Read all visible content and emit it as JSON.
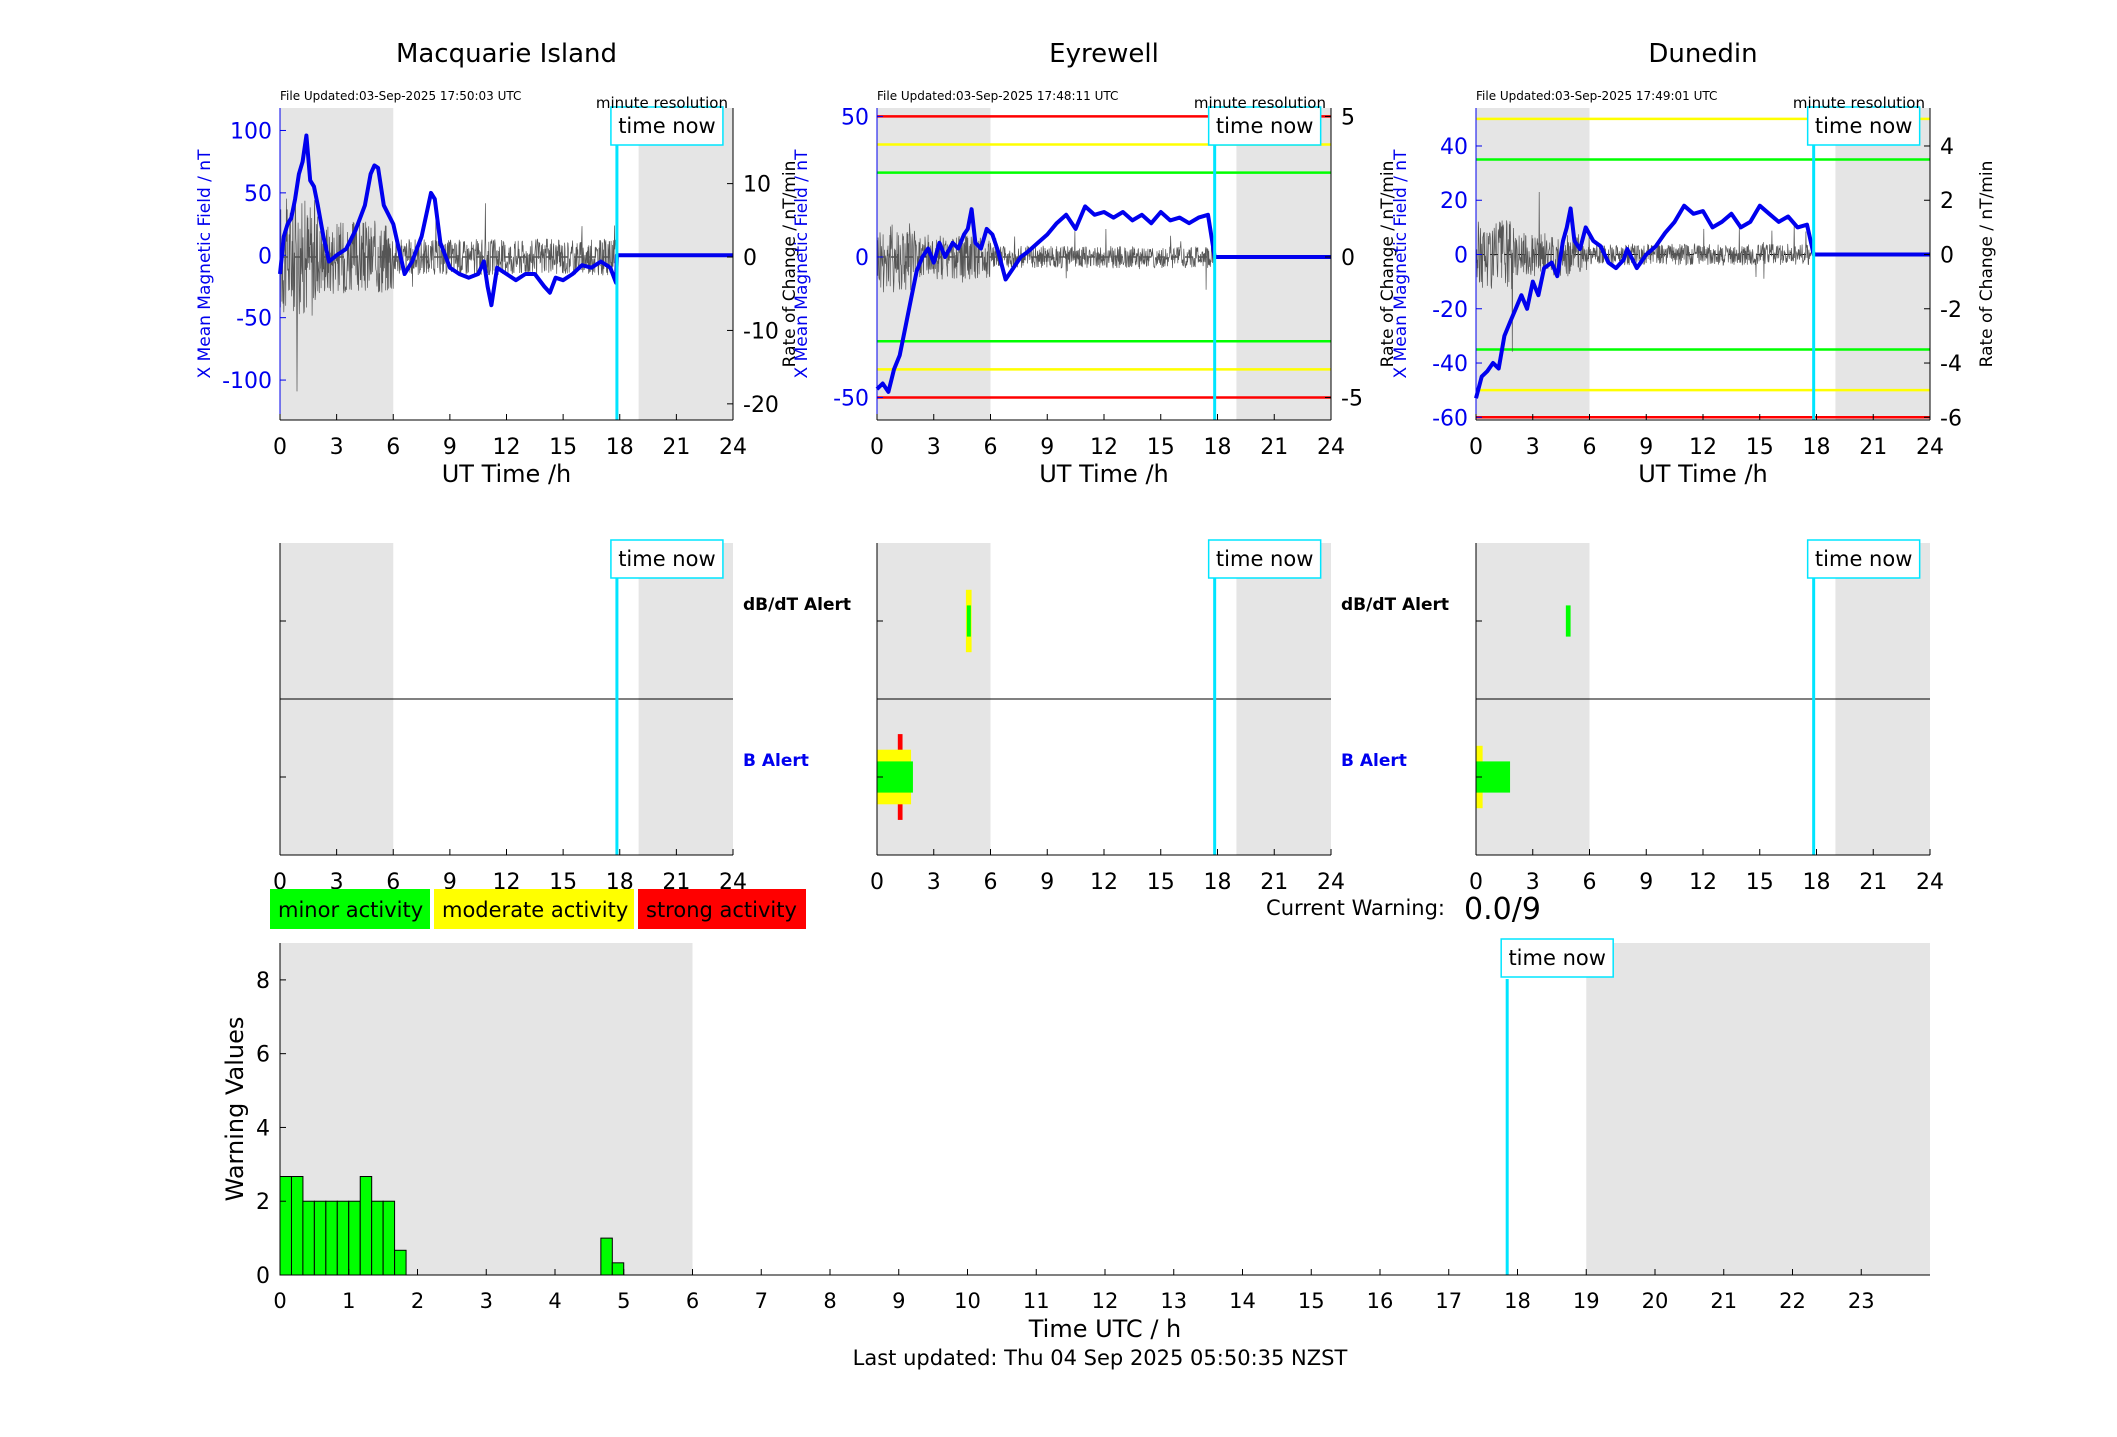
{
  "panels": [
    {
      "id": "macquarie",
      "title": "Macquarie Island",
      "file_updated": "File Updated:03-Sep-2025 17:50:03 UTC",
      "resolution": "minute resolution",
      "ylabel_left": "X Mean Magnetic Field / nT",
      "ylabel_right": "Rate of Change / nT/min",
      "xlabel": "UT Time /h",
      "yticks_left": [
        -100,
        -50,
        0,
        50,
        100
      ],
      "ylim_left": [
        -132,
        118
      ],
      "yticks_right": [
        -20,
        -10,
        0,
        10
      ],
      "ylim_right": [
        -22.2,
        20.3
      ],
      "thresholds": [],
      "field_trace": [
        [
          0,
          -15
        ],
        [
          0.2,
          15
        ],
        [
          0.4,
          25
        ],
        [
          0.6,
          30
        ],
        [
          0.8,
          45
        ],
        [
          1,
          65
        ],
        [
          1.2,
          75
        ],
        [
          1.4,
          96
        ],
        [
          1.6,
          60
        ],
        [
          1.8,
          55
        ],
        [
          2,
          40
        ],
        [
          2.3,
          15
        ],
        [
          2.6,
          -5
        ],
        [
          3,
          0
        ],
        [
          3.5,
          5
        ],
        [
          4,
          20
        ],
        [
          4.5,
          40
        ],
        [
          4.8,
          65
        ],
        [
          5,
          72
        ],
        [
          5.2,
          70
        ],
        [
          5.5,
          40
        ],
        [
          6,
          25
        ],
        [
          6.3,
          5
        ],
        [
          6.6,
          -15
        ],
        [
          7,
          -5
        ],
        [
          7.5,
          15
        ],
        [
          8,
          50
        ],
        [
          8.2,
          45
        ],
        [
          8.5,
          10
        ],
        [
          9,
          -10
        ],
        [
          9.5,
          -15
        ],
        [
          10,
          -18
        ],
        [
          10.5,
          -15
        ],
        [
          10.8,
          -5
        ],
        [
          11,
          -25
        ],
        [
          11.2,
          -40
        ],
        [
          11.5,
          -10
        ],
        [
          12,
          -15
        ],
        [
          12.5,
          -20
        ],
        [
          13,
          -15
        ],
        [
          13.5,
          -15
        ],
        [
          14,
          -25
        ],
        [
          14.3,
          -30
        ],
        [
          14.6,
          -18
        ],
        [
          15,
          -20
        ],
        [
          15.5,
          -15
        ],
        [
          16,
          -8
        ],
        [
          16.5,
          -10
        ],
        [
          17,
          -5
        ],
        [
          17.5,
          -10
        ],
        [
          17.8,
          -22
        ],
        [
          17.85,
          0
        ],
        [
          24,
          0
        ]
      ],
      "rate_trace_amplitude": 5,
      "now_hour": 17.85,
      "shade": [
        [
          0,
          6
        ],
        [
          19,
          24
        ]
      ]
    },
    {
      "id": "eyrewell",
      "title": "Eyrewell",
      "file_updated": "File Updated:03-Sep-2025 17:48:11 UTC",
      "resolution": "minute resolution",
      "ylabel_left": "X Mean Magnetic Field / nT",
      "ylabel_right": "Rate of Change / nT/min",
      "xlabel": "UT Time /h",
      "yticks_left": [
        -50,
        0,
        50
      ],
      "ylim_left": [
        -58,
        53
      ],
      "yticks_right": [
        -5,
        0,
        5
      ],
      "ylim_right": [
        -5.8,
        5.3
      ],
      "thresholds": [
        {
          "value": 50,
          "color": "#ff0000"
        },
        {
          "value": 40,
          "color": "#ffff00"
        },
        {
          "value": 30,
          "color": "#00ff00"
        },
        {
          "value": -30,
          "color": "#00ff00"
        },
        {
          "value": -40,
          "color": "#ffff00"
        },
        {
          "value": -50,
          "color": "#ff0000"
        }
      ],
      "field_trace": [
        [
          0,
          -47
        ],
        [
          0.3,
          -45
        ],
        [
          0.6,
          -48
        ],
        [
          0.9,
          -40
        ],
        [
          1.2,
          -35
        ],
        [
          1.5,
          -25
        ],
        [
          1.8,
          -15
        ],
        [
          2.1,
          -5
        ],
        [
          2.4,
          0
        ],
        [
          2.7,
          3
        ],
        [
          3,
          -2
        ],
        [
          3.3,
          5
        ],
        [
          3.6,
          0
        ],
        [
          4,
          5
        ],
        [
          4.3,
          3
        ],
        [
          4.6,
          8
        ],
        [
          4.8,
          10
        ],
        [
          5,
          17
        ],
        [
          5.2,
          5
        ],
        [
          5.5,
          3
        ],
        [
          5.8,
          10
        ],
        [
          6.1,
          8
        ],
        [
          6.4,
          2
        ],
        [
          6.8,
          -8
        ],
        [
          7.2,
          -4
        ],
        [
          7.6,
          0
        ],
        [
          8,
          2
        ],
        [
          8.5,
          5
        ],
        [
          9,
          8
        ],
        [
          9.5,
          12
        ],
        [
          10,
          15
        ],
        [
          10.5,
          10
        ],
        [
          11,
          18
        ],
        [
          11.5,
          15
        ],
        [
          12,
          16
        ],
        [
          12.5,
          14
        ],
        [
          13,
          16
        ],
        [
          13.5,
          13
        ],
        [
          14,
          15
        ],
        [
          14.5,
          12
        ],
        [
          15,
          16
        ],
        [
          15.5,
          13
        ],
        [
          16,
          14
        ],
        [
          16.5,
          12
        ],
        [
          17,
          14
        ],
        [
          17.5,
          15
        ],
        [
          17.85,
          0
        ],
        [
          24,
          0
        ]
      ],
      "rate_trace_amplitude": 0.8,
      "now_hour": 17.85,
      "shade": [
        [
          0,
          6
        ],
        [
          19,
          24
        ]
      ]
    },
    {
      "id": "dunedin",
      "title": "Dunedin",
      "file_updated": "File Updated:03-Sep-2025 17:49:01 UTC",
      "resolution": "minute resolution",
      "ylabel_left": "X Mean Magnetic Field / nT",
      "ylabel_right": "Rate of Change / nT/min",
      "xlabel": "UT Time /h",
      "yticks_left": [
        -60,
        -40,
        -20,
        0,
        20,
        40
      ],
      "ylim_left": [
        -61,
        54
      ],
      "yticks_right": [
        -6,
        -4,
        -2,
        0,
        2,
        4
      ],
      "ylim_right": [
        -6.1,
        5.4
      ],
      "thresholds": [
        {
          "value": 50,
          "color": "#ffff00"
        },
        {
          "value": 35,
          "color": "#00ff00"
        },
        {
          "value": -35,
          "color": "#00ff00"
        },
        {
          "value": -50,
          "color": "#ffff00"
        },
        {
          "value": -60,
          "color": "#ff0000"
        }
      ],
      "field_trace": [
        [
          0,
          -53
        ],
        [
          0.3,
          -45
        ],
        [
          0.6,
          -43
        ],
        [
          0.9,
          -40
        ],
        [
          1.2,
          -42
        ],
        [
          1.5,
          -30
        ],
        [
          1.8,
          -25
        ],
        [
          2.1,
          -20
        ],
        [
          2.4,
          -15
        ],
        [
          2.7,
          -20
        ],
        [
          3,
          -10
        ],
        [
          3.3,
          -15
        ],
        [
          3.6,
          -5
        ],
        [
          4,
          -3
        ],
        [
          4.3,
          -8
        ],
        [
          4.6,
          5
        ],
        [
          4.8,
          10
        ],
        [
          5,
          17
        ],
        [
          5.2,
          5
        ],
        [
          5.5,
          2
        ],
        [
          5.8,
          10
        ],
        [
          6.2,
          5
        ],
        [
          6.6,
          3
        ],
        [
          7,
          -3
        ],
        [
          7.4,
          -5
        ],
        [
          7.8,
          -2
        ],
        [
          8,
          2
        ],
        [
          8.5,
          -5
        ],
        [
          9,
          0
        ],
        [
          9.5,
          3
        ],
        [
          10,
          8
        ],
        [
          10.5,
          12
        ],
        [
          11,
          18
        ],
        [
          11.5,
          15
        ],
        [
          12,
          16
        ],
        [
          12.5,
          10
        ],
        [
          13,
          12
        ],
        [
          13.5,
          15
        ],
        [
          14,
          10
        ],
        [
          14.5,
          12
        ],
        [
          15,
          18
        ],
        [
          15.5,
          15
        ],
        [
          16,
          12
        ],
        [
          16.5,
          14
        ],
        [
          17,
          10
        ],
        [
          17.5,
          11
        ],
        [
          17.85,
          0
        ],
        [
          24,
          0
        ]
      ],
      "rate_trace_amplitude": 0.8,
      "now_hour": 17.85,
      "shade": [
        [
          0,
          6
        ],
        [
          19,
          24
        ]
      ]
    }
  ],
  "alert_panels": [
    {
      "id": "macquarie",
      "dbdt_label": "dB/dT Alert",
      "b_label": "B Alert",
      "bars": []
    },
    {
      "id": "eyrewell",
      "dbdt_label": "dB/dT Alert",
      "b_label": "B Alert",
      "bars": [
        {
          "row": "dbdt",
          "x0": 4.7,
          "x1": 5.0,
          "level": "moderate",
          "half": 0.4
        },
        {
          "row": "dbdt",
          "x0": 4.75,
          "x1": 4.95,
          "level": "minor",
          "half": 0.2
        },
        {
          "row": "b",
          "x0": 1.1,
          "x1": 1.35,
          "level": "strong",
          "half": 0.55
        },
        {
          "row": "b",
          "x0": 0,
          "x1": 1.8,
          "level": "moderate",
          "half": 0.35
        },
        {
          "row": "b",
          "x0": 0,
          "x1": 1.9,
          "level": "minor",
          "half": 0.2
        }
      ]
    },
    {
      "id": "dunedin",
      "dbdt_label": "",
      "b_label": "",
      "bars": [
        {
          "row": "dbdt",
          "x0": 4.75,
          "x1": 5.0,
          "level": "minor",
          "half": 0.2
        },
        {
          "row": "b",
          "x0": 0,
          "x1": 0.35,
          "level": "moderate",
          "half": 0.4
        },
        {
          "row": "b",
          "x0": 0,
          "x1": 1.8,
          "level": "minor",
          "half": 0.2
        }
      ]
    }
  ],
  "alert_labels": {
    "dbdt": "dB/dT Alert",
    "b": "B Alert"
  },
  "alert_xticks": [
    0,
    3,
    6,
    9,
    12,
    15,
    18,
    21,
    24
  ],
  "time_now_label": "time now",
  "legend": [
    {
      "label": "minor activity",
      "color": "#00ff00"
    },
    {
      "label": "moderate activity",
      "color": "#ffff00"
    },
    {
      "label": "strong activity",
      "color": "#ff0000"
    }
  ],
  "current_warning": {
    "label": "Current Warning:",
    "value": "0.0/9"
  },
  "chart_data": {
    "type": "bar",
    "xlabel": "Time UTC / h",
    "ylabel": "Warning Values",
    "xlim": [
      0,
      24
    ],
    "ylim": [
      0,
      9
    ],
    "yticks": [
      0,
      2,
      4,
      6,
      8
    ],
    "xticks": [
      0,
      1,
      2,
      3,
      4,
      5,
      6,
      7,
      8,
      9,
      10,
      11,
      12,
      13,
      14,
      15,
      16,
      17,
      18,
      19,
      20,
      21,
      22,
      23
    ],
    "bar_width_h": 0.1667,
    "bars": [
      {
        "x": 0.0,
        "y": 2.67
      },
      {
        "x": 0.167,
        "y": 2.67
      },
      {
        "x": 0.333,
        "y": 2.0
      },
      {
        "x": 0.5,
        "y": 2.0
      },
      {
        "x": 0.667,
        "y": 2.0
      },
      {
        "x": 0.833,
        "y": 2.0
      },
      {
        "x": 1.0,
        "y": 2.0
      },
      {
        "x": 1.167,
        "y": 2.67
      },
      {
        "x": 1.333,
        "y": 2.0
      },
      {
        "x": 1.5,
        "y": 2.0
      },
      {
        "x": 1.667,
        "y": 0.67
      },
      {
        "x": 4.667,
        "y": 1.0
      },
      {
        "x": 4.833,
        "y": 0.33
      }
    ],
    "now_hour": 17.85,
    "shade": [
      [
        0,
        6
      ],
      [
        19,
        24
      ]
    ],
    "bar_color": "#00ff00"
  },
  "footer": {
    "last_updated": "Last updated: Thu 04 Sep 2025 05:50:35 NZST"
  }
}
